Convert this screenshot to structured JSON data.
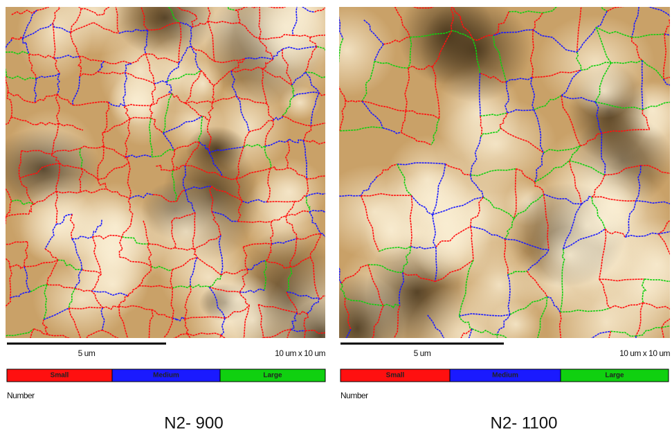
{
  "panels": [
    {
      "scale_bar_label": "5 um",
      "scan_size": "10 um x 10 um",
      "legend": [
        "Small",
        "Medium",
        "Large"
      ],
      "legend_title": "Number",
      "caption": "N2- 900"
    },
    {
      "scale_bar_label": "5 um",
      "scan_size": "10 um x 10 um",
      "legend": [
        "Small",
        "Medium",
        "Large"
      ],
      "legend_title": "Number",
      "caption": "N2- 1100"
    }
  ]
}
